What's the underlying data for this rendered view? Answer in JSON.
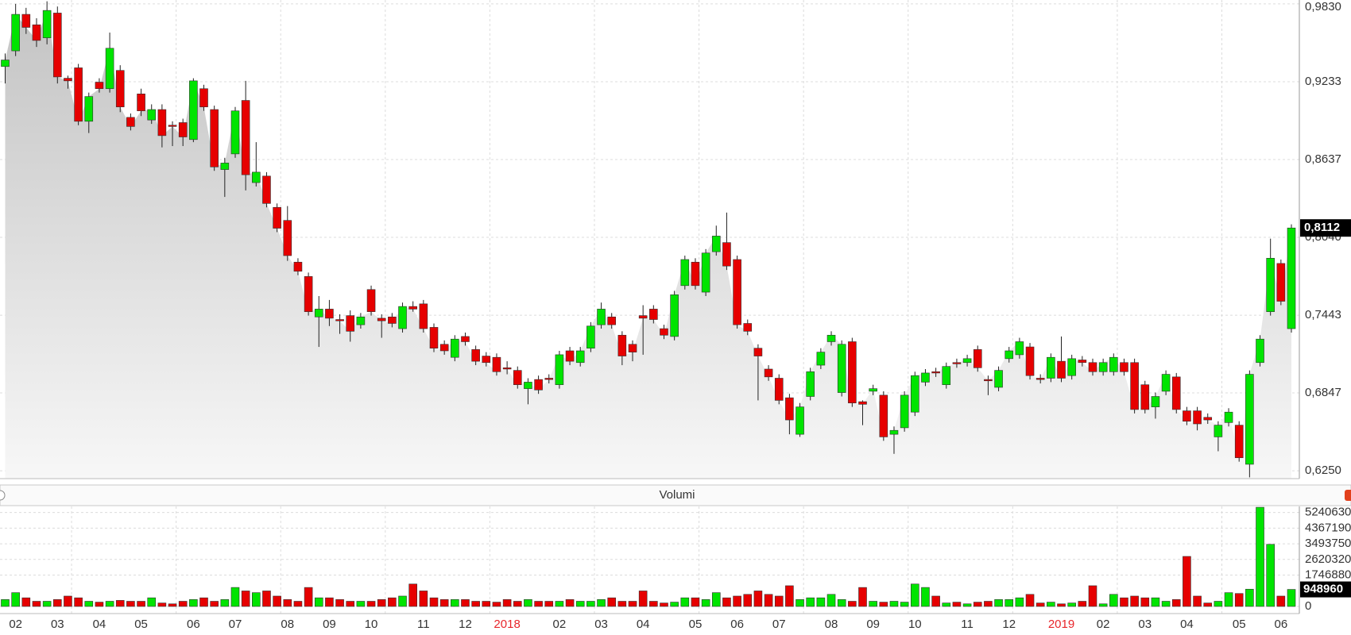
{
  "chart_data": [
    {
      "type": "candlestick",
      "open": [
        0.935,
        0.947,
        0.975,
        0.967,
        0.957,
        0.976,
        0.926,
        0.934,
        0.893,
        0.923,
        0.918,
        0.932,
        0.896,
        0.914,
        0.894,
        0.902,
        0.89,
        0.892,
        0.879,
        0.918,
        0.902,
        0.856,
        0.868,
        0.909,
        0.846,
        0.851,
        0.827,
        0.817,
        0.785,
        0.774,
        0.743,
        0.749,
        0.741,
        0.744,
        0.737,
        0.764,
        0.742,
        0.743,
        0.734,
        0.751,
        0.753,
        0.735,
        0.722,
        0.712,
        0.728,
        0.718,
        0.713,
        0.712,
        0.704,
        0.702,
        0.688,
        0.695,
        0.696,
        0.691,
        0.717,
        0.708,
        0.719,
        0.737,
        0.743,
        0.729,
        0.722,
        0.744,
        0.749,
        0.734,
        0.728,
        0.767,
        0.785,
        0.762,
        0.793,
        0.8,
        0.787,
        0.738,
        0.719,
        0.703,
        0.696,
        0.681,
        0.653,
        0.682,
        0.706,
        0.724,
        0.685,
        0.724,
        0.678,
        0.686,
        0.683,
        0.653,
        0.658,
        0.67,
        0.693,
        0.701,
        0.691,
        0.708,
        0.708,
        0.718,
        0.695,
        0.689,
        0.711,
        0.714,
        0.72,
        0.696,
        0.696,
        0.709,
        0.698,
        0.71,
        0.708,
        0.701,
        0.701,
        0.708,
        0.708,
        0.691,
        0.674,
        0.686,
        0.697,
        0.671,
        0.671,
        0.666,
        0.651,
        0.662,
        0.66,
        0.63,
        0.708,
        0.747,
        0.784,
        0.734
      ],
      "high": [
        0.945,
        0.983,
        0.98,
        0.972,
        0.985,
        0.981,
        0.928,
        0.937,
        0.915,
        0.926,
        0.961,
        0.936,
        0.899,
        0.918,
        0.906,
        0.906,
        0.893,
        0.895,
        0.926,
        0.921,
        0.905,
        0.865,
        0.904,
        0.924,
        0.877,
        0.854,
        0.83,
        0.828,
        0.788,
        0.777,
        0.759,
        0.756,
        0.745,
        0.748,
        0.746,
        0.767,
        0.745,
        0.746,
        0.754,
        0.755,
        0.756,
        0.738,
        0.725,
        0.729,
        0.731,
        0.721,
        0.716,
        0.715,
        0.709,
        0.705,
        0.696,
        0.698,
        0.699,
        0.717,
        0.72,
        0.72,
        0.739,
        0.754,
        0.746,
        0.732,
        0.725,
        0.752,
        0.752,
        0.737,
        0.763,
        0.79,
        0.788,
        0.795,
        0.813,
        0.823,
        0.79,
        0.741,
        0.722,
        0.706,
        0.699,
        0.684,
        0.677,
        0.704,
        0.719,
        0.732,
        0.725,
        0.727,
        0.679,
        0.691,
        0.686,
        0.659,
        0.686,
        0.701,
        0.703,
        0.704,
        0.708,
        0.711,
        0.714,
        0.721,
        0.698,
        0.705,
        0.72,
        0.727,
        0.723,
        0.699,
        0.715,
        0.728,
        0.714,
        0.713,
        0.711,
        0.711,
        0.715,
        0.711,
        0.711,
        0.694,
        0.685,
        0.702,
        0.7,
        0.674,
        0.674,
        0.669,
        0.663,
        0.673,
        0.663,
        0.702,
        0.729,
        0.803,
        0.787,
        0.814
      ],
      "low": [
        0.922,
        0.943,
        0.96,
        0.95,
        0.952,
        0.922,
        0.918,
        0.89,
        0.884,
        0.915,
        0.915,
        0.9,
        0.886,
        0.897,
        0.891,
        0.873,
        0.874,
        0.874,
        0.877,
        0.901,
        0.855,
        0.835,
        0.865,
        0.84,
        0.843,
        0.827,
        0.808,
        0.786,
        0.775,
        0.744,
        0.72,
        0.736,
        0.73,
        0.724,
        0.734,
        0.744,
        0.727,
        0.735,
        0.731,
        0.747,
        0.731,
        0.716,
        0.714,
        0.709,
        0.721,
        0.706,
        0.705,
        0.698,
        0.699,
        0.688,
        0.676,
        0.684,
        0.692,
        0.688,
        0.706,
        0.705,
        0.716,
        0.734,
        0.734,
        0.706,
        0.709,
        0.714,
        0.738,
        0.726,
        0.725,
        0.764,
        0.764,
        0.759,
        0.79,
        0.779,
        0.734,
        0.729,
        0.679,
        0.694,
        0.676,
        0.653,
        0.651,
        0.679,
        0.703,
        0.721,
        0.682,
        0.674,
        0.66,
        0.683,
        0.648,
        0.638,
        0.655,
        0.667,
        0.69,
        0.697,
        0.688,
        0.704,
        0.705,
        0.701,
        0.683,
        0.686,
        0.708,
        0.711,
        0.695,
        0.692,
        0.693,
        0.693,
        0.695,
        0.705,
        0.698,
        0.698,
        0.698,
        0.698,
        0.669,
        0.669,
        0.665,
        0.683,
        0.669,
        0.66,
        0.656,
        0.661,
        0.64,
        0.659,
        0.632,
        0.62,
        0.705,
        0.744,
        0.752,
        0.731
      ],
      "close": [
        0.94,
        0.975,
        0.965,
        0.955,
        0.978,
        0.927,
        0.924,
        0.893,
        0.912,
        0.918,
        0.949,
        0.904,
        0.889,
        0.901,
        0.902,
        0.882,
        0.889,
        0.881,
        0.924,
        0.904,
        0.858,
        0.861,
        0.901,
        0.852,
        0.854,
        0.83,
        0.811,
        0.79,
        0.778,
        0.747,
        0.749,
        0.742,
        0.74,
        0.732,
        0.743,
        0.747,
        0.74,
        0.738,
        0.751,
        0.749,
        0.734,
        0.719,
        0.717,
        0.726,
        0.724,
        0.709,
        0.708,
        0.701,
        0.703,
        0.691,
        0.693,
        0.687,
        0.695,
        0.714,
        0.709,
        0.717,
        0.736,
        0.749,
        0.737,
        0.713,
        0.716,
        0.742,
        0.741,
        0.729,
        0.76,
        0.787,
        0.767,
        0.792,
        0.805,
        0.782,
        0.737,
        0.732,
        0.713,
        0.697,
        0.679,
        0.664,
        0.674,
        0.701,
        0.716,
        0.729,
        0.722,
        0.677,
        0.676,
        0.688,
        0.651,
        0.656,
        0.683,
        0.698,
        0.7,
        0.7,
        0.705,
        0.707,
        0.711,
        0.704,
        0.694,
        0.702,
        0.717,
        0.724,
        0.698,
        0.695,
        0.712,
        0.696,
        0.711,
        0.708,
        0.701,
        0.708,
        0.712,
        0.701,
        0.672,
        0.672,
        0.682,
        0.699,
        0.672,
        0.663,
        0.661,
        0.664,
        0.66,
        0.67,
        0.635,
        0.699,
        0.726,
        0.788,
        0.755,
        0.8112
      ],
      "last_close_label": "0,8112",
      "up_color": "#00e400",
      "down_color": "#e60000",
      "area_color": "#c4c4c4",
      "ylim": [
        0.619,
        0.986
      ],
      "yticks": [
        {
          "value": 0.983,
          "label": "0,9830"
        },
        {
          "value": 0.9233,
          "label": "0,9233"
        },
        {
          "value": 0.8637,
          "label": "0,8637"
        },
        {
          "value": 0.804,
          "label": "0,8040"
        },
        {
          "value": 0.7443,
          "label": "0,7443"
        },
        {
          "value": 0.6847,
          "label": "0,6847"
        },
        {
          "value": 0.625,
          "label": "0,6250"
        }
      ],
      "grid": true
    },
    {
      "type": "bar",
      "title": "Volumi",
      "categories": [
        null,
        "02",
        null,
        null,
        null,
        "03",
        null,
        null,
        null,
        "04",
        null,
        null,
        null,
        "05",
        null,
        null,
        null,
        null,
        "06",
        null,
        null,
        null,
        "07",
        null,
        null,
        null,
        null,
        "08",
        null,
        null,
        null,
        "09",
        null,
        null,
        null,
        "10",
        null,
        null,
        null,
        null,
        "11",
        null,
        null,
        null,
        "12",
        null,
        null,
        null,
        "2018",
        null,
        null,
        null,
        null,
        "02",
        null,
        null,
        null,
        "03",
        null,
        null,
        null,
        "04",
        null,
        null,
        null,
        null,
        "05",
        null,
        null,
        null,
        "06",
        null,
        null,
        null,
        "07",
        null,
        null,
        null,
        null,
        "08",
        null,
        null,
        null,
        "09",
        null,
        null,
        null,
        "10",
        null,
        null,
        null,
        null,
        "11",
        null,
        null,
        null,
        "12",
        null,
        null,
        null,
        null,
        "2019",
        null,
        null,
        null,
        "02",
        null,
        null,
        null,
        "03",
        null,
        null,
        null,
        "04",
        null,
        null,
        null,
        null,
        "05",
        null,
        null,
        null,
        "06",
        null
      ],
      "values": [
        385000,
        769000,
        481000,
        288000,
        288000,
        385000,
        577000,
        481000,
        288000,
        240000,
        288000,
        337000,
        288000,
        288000,
        481000,
        192000,
        144000,
        288000,
        385000,
        481000,
        288000,
        385000,
        1058000,
        865000,
        769000,
        865000,
        577000,
        385000,
        288000,
        1058000,
        481000,
        481000,
        385000,
        288000,
        288000,
        288000,
        385000,
        481000,
        577000,
        1250000,
        865000,
        481000,
        385000,
        385000,
        385000,
        288000,
        288000,
        240000,
        385000,
        288000,
        385000,
        288000,
        288000,
        288000,
        385000,
        288000,
        288000,
        385000,
        481000,
        288000,
        288000,
        865000,
        288000,
        192000,
        240000,
        481000,
        481000,
        385000,
        769000,
        481000,
        577000,
        673000,
        865000,
        673000,
        577000,
        1154000,
        385000,
        481000,
        481000,
        673000,
        385000,
        288000,
        1058000,
        288000,
        240000,
        288000,
        240000,
        1250000,
        1058000,
        577000,
        192000,
        240000,
        144000,
        240000,
        288000,
        385000,
        385000,
        481000,
        673000,
        192000,
        240000,
        144000,
        192000,
        288000,
        1154000,
        144000,
        673000,
        481000,
        577000,
        481000,
        481000,
        288000,
        385000,
        2789000,
        577000,
        192000,
        288000,
        769000,
        721000,
        962000,
        5529000,
        3462000,
        577000,
        948960
      ],
      "year_label_color": "#e8262b",
      "ylim": [
        -398000,
        5577000
      ],
      "yticks": [
        5240630,
        4367190,
        3493750,
        2620320,
        1746880,
        0
      ],
      "grid": true
    }
  ]
}
